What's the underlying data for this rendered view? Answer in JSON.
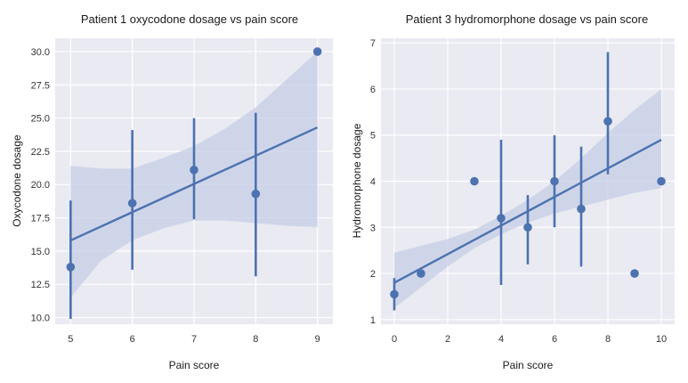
{
  "chart_data": [
    {
      "type": "scatter",
      "subtype": "regplot-with-error-bars",
      "title": "Patient 1 oxycodone dosage vs pain score",
      "xlabel": "Pain score",
      "ylabel": "Oxycodone dosage",
      "xlim": [
        4.75,
        9.25
      ],
      "ylim": [
        9.5,
        31.0
      ],
      "xticks": [
        5,
        6,
        7,
        8,
        9
      ],
      "xtick_labels": [
        "5",
        "6",
        "7",
        "8",
        "9"
      ],
      "yticks": [
        10.0,
        12.5,
        15.0,
        17.5,
        20.0,
        22.5,
        25.0,
        27.5,
        30.0
      ],
      "ytick_labels": [
        "10.0",
        "12.5",
        "15.0",
        "17.5",
        "20.0",
        "22.5",
        "25.0",
        "27.5",
        "30.0"
      ],
      "grid": true,
      "points": [
        {
          "x": 5,
          "y": 13.8,
          "low": 9.9,
          "high": 18.8
        },
        {
          "x": 6,
          "y": 18.6,
          "low": 13.6,
          "high": 24.1
        },
        {
          "x": 7,
          "y": 21.1,
          "low": 17.4,
          "high": 25.0
        },
        {
          "x": 8,
          "y": 19.3,
          "low": 13.1,
          "high": 25.4
        },
        {
          "x": 9,
          "y": 30.0,
          "low": null,
          "high": null
        }
      ],
      "regression": {
        "x_start": 5,
        "y_start": 15.8,
        "x_end": 9,
        "y_end": 24.3
      },
      "confidence_band": [
        {
          "x": 5.0,
          "low": 11.5,
          "high": 21.4
        },
        {
          "x": 5.5,
          "low": 14.3,
          "high": 21.2
        },
        {
          "x": 6.0,
          "low": 15.8,
          "high": 21.2
        },
        {
          "x": 6.5,
          "low": 16.7,
          "high": 22.0
        },
        {
          "x": 7.0,
          "low": 17.3,
          "high": 22.9
        },
        {
          "x": 7.5,
          "low": 17.3,
          "high": 24.2
        },
        {
          "x": 8.0,
          "low": 17.1,
          "high": 25.8
        },
        {
          "x": 8.5,
          "low": 16.9,
          "high": 27.9
        },
        {
          "x": 9.0,
          "low": 16.8,
          "high": 30.0
        }
      ],
      "colors": {
        "points": "#4c72b0",
        "band": "#c5cde6",
        "background": "#eaeaf2",
        "grid": "#ffffff"
      }
    },
    {
      "type": "scatter",
      "subtype": "regplot-with-error-bars",
      "title": "Patient 3 hydromorphone dosage vs pain score",
      "xlabel": "Pain score",
      "ylabel": "Hydromorphone dosage",
      "xlim": [
        -0.5,
        10.5
      ],
      "ylim": [
        0.9,
        7.1
      ],
      "xticks": [
        0,
        2,
        4,
        6,
        8,
        10
      ],
      "xtick_labels": [
        "0",
        "2",
        "4",
        "6",
        "8",
        "10"
      ],
      "yticks": [
        1,
        2,
        3,
        4,
        5,
        6,
        7
      ],
      "ytick_labels": [
        "1",
        "2",
        "3",
        "4",
        "5",
        "6",
        "7"
      ],
      "grid": true,
      "points": [
        {
          "x": 0,
          "y": 1.55,
          "low": 1.2,
          "high": 1.9
        },
        {
          "x": 1,
          "y": 2.0,
          "low": null,
          "high": null
        },
        {
          "x": 3,
          "y": 4.0,
          "low": null,
          "high": null
        },
        {
          "x": 4,
          "y": 3.2,
          "low": 1.75,
          "high": 4.9
        },
        {
          "x": 5,
          "y": 3.0,
          "low": 2.2,
          "high": 3.7
        },
        {
          "x": 6,
          "y": 4.0,
          "low": 3.0,
          "high": 5.0
        },
        {
          "x": 7,
          "y": 3.4,
          "low": 2.15,
          "high": 4.75
        },
        {
          "x": 8,
          "y": 5.3,
          "low": 4.15,
          "high": 6.8
        },
        {
          "x": 9,
          "y": 2.0,
          "low": null,
          "high": null
        },
        {
          "x": 10,
          "y": 4.0,
          "low": null,
          "high": null
        }
      ],
      "regression": {
        "x_start": 0,
        "y_start": 1.8,
        "x_end": 10,
        "y_end": 4.9
      },
      "confidence_band": [
        {
          "x": 0,
          "low": 1.25,
          "high": 2.45
        },
        {
          "x": 1,
          "low": 1.7,
          "high": 2.6
        },
        {
          "x": 2,
          "low": 2.15,
          "high": 2.75
        },
        {
          "x": 3,
          "low": 2.55,
          "high": 2.95
        },
        {
          "x": 4,
          "low": 2.85,
          "high": 3.25
        },
        {
          "x": 5,
          "low": 3.1,
          "high": 3.6
        },
        {
          "x": 6,
          "low": 3.3,
          "high": 4.0
        },
        {
          "x": 7,
          "low": 3.45,
          "high": 4.5
        },
        {
          "x": 8,
          "low": 3.6,
          "high": 5.05
        },
        {
          "x": 9,
          "low": 3.75,
          "high": 5.55
        },
        {
          "x": 10,
          "low": 3.85,
          "high": 6.0
        }
      ],
      "colors": {
        "points": "#4c72b0",
        "band": "#c5cde6",
        "background": "#eaeaf2",
        "grid": "#ffffff"
      }
    }
  ]
}
